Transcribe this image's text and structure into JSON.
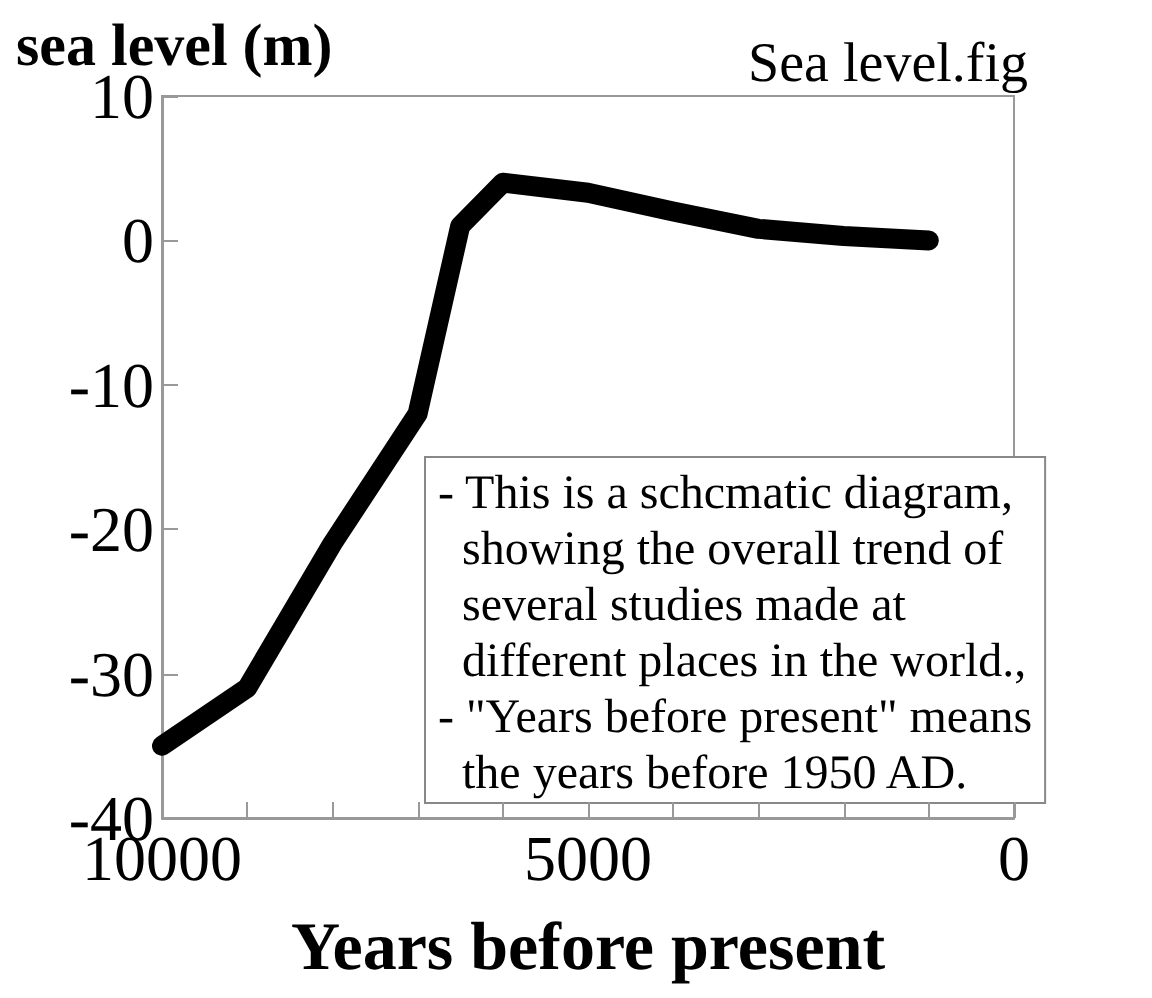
{
  "chart_data": {
    "type": "line",
    "ylabel": "sea level (m)",
    "xlabel": "Years before present",
    "annotations": [
      "Sea level.fig",
      "- This is a schcmatic diagram,\n  showing the overall trend of\n  several studies made at\n  different places in the world.,\n- \"Years before present\" means\n  the years before 1950 AD."
    ],
    "x": [
      10000,
      9000,
      8000,
      7000,
      6500,
      6000,
      5000,
      4000,
      3000,
      2000,
      1000
    ],
    "series": [
      {
        "color": "#000000",
        "values": [
          -35,
          -31,
          -21,
          -12,
          1,
          4,
          3.3,
          2,
          0.8,
          0.3,
          0
        ]
      }
    ],
    "xlim": [
      10000,
      0
    ],
    "xticks": [
      10000,
      {
        "value": 9000,
        "label": null
      },
      {
        "value": 8000,
        "label": null
      },
      {
        "value": 7000,
        "label": null
      },
      {
        "value": 6000,
        "label": null
      },
      5000,
      {
        "value": 4000,
        "label": null
      },
      {
        "value": 3000,
        "label": null
      },
      {
        "value": 2000,
        "label": null
      },
      {
        "value": 1000,
        "label": null
      },
      0
    ],
    "ylim": [
      -40,
      10
    ],
    "yticks": [
      -40,
      -30,
      -20,
      -10,
      0,
      10
    ],
    "grid": false,
    "line_style": "solid"
  }
}
